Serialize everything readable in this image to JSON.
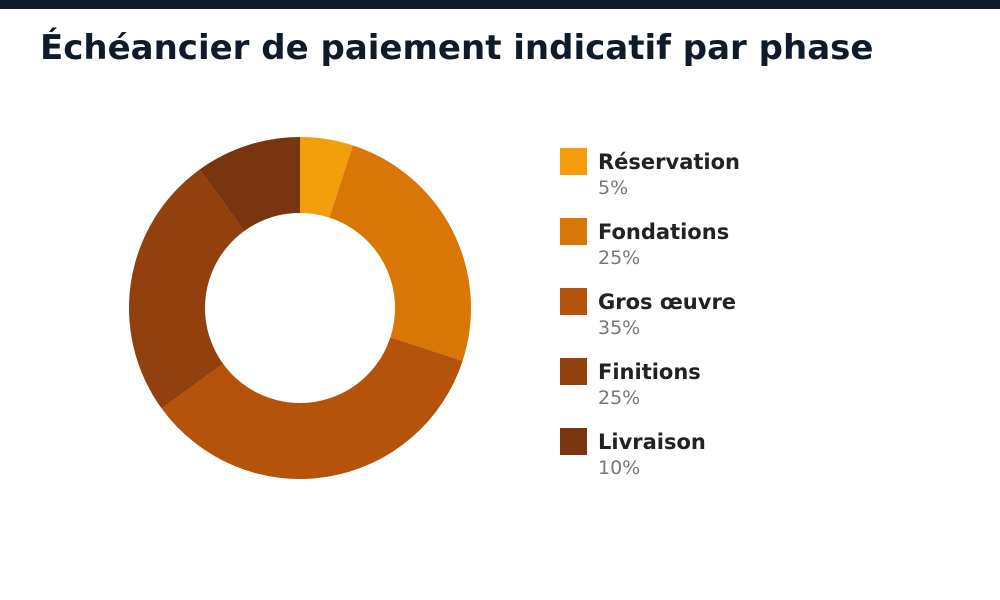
{
  "header": {
    "bar_color": "#0f1b2a"
  },
  "chart_data": {
    "type": "pie",
    "style": "donut",
    "title": "Échéancier de paiement indicatif par phase",
    "legend_position": "right",
    "categories": [
      "Réservation",
      "Fondations",
      "Gros œuvre",
      "Finitions",
      "Livraison"
    ],
    "values": [
      5,
      25,
      35,
      25,
      10
    ],
    "value_labels": [
      "5%",
      "25%",
      "35%",
      "25%",
      "10%"
    ],
    "colors": [
      "#f59e0b",
      "#d97706",
      "#b45309",
      "#92400e",
      "#78350f"
    ]
  }
}
